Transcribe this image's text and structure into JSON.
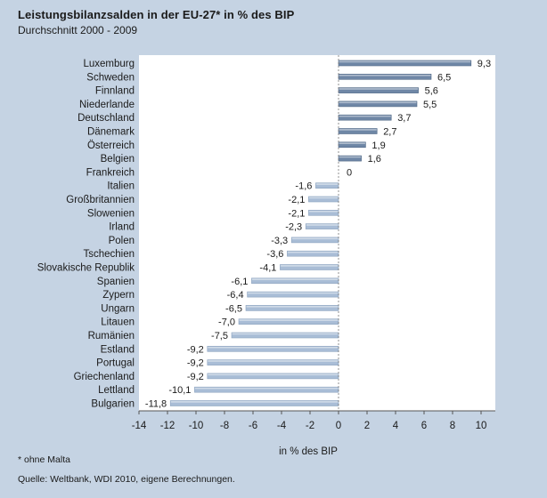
{
  "header": {
    "title": "Leistungsbilanzsalden in der EU-27* in % des BIP",
    "subtitle": "Durchschnitt 2000 - 2009"
  },
  "footer": {
    "footnote": "* ohne Malta",
    "source": "Quelle: Weltbank, WDI 2010, eigene Berechnungen."
  },
  "colors": {
    "background": "#c5d3e3",
    "plot_background": "#ffffff",
    "positive_bar": "#6f87a6",
    "negative_bar": "#a9bdd6",
    "axis": "#555555"
  },
  "chart_data": {
    "type": "bar",
    "orientation": "horizontal",
    "categories": [
      "Luxemburg",
      "Schweden",
      "Finnland",
      "Niederlande",
      "Deutschland",
      "Dänemark",
      "Österreich",
      "Belgien",
      "Frankreich",
      "Italien",
      "Großbritannien",
      "Slowenien",
      "Irland",
      "Polen",
      "Tschechien",
      "Slovakische Republik",
      "Spanien",
      "Zypern",
      "Ungarn",
      "Litauen",
      "Rumänien",
      "Estland",
      "Portugal",
      "Griechenland",
      "Lettland",
      "Bulgarien"
    ],
    "values": [
      9.3,
      6.5,
      5.6,
      5.5,
      3.7,
      2.7,
      1.9,
      1.6,
      0,
      -1.6,
      -2.1,
      -2.1,
      -2.3,
      -3.3,
      -3.6,
      -4.1,
      -6.1,
      -6.4,
      -6.5,
      -7.0,
      -7.5,
      -9.2,
      -9.2,
      -9.2,
      -10.1,
      -11.8
    ],
    "value_labels": [
      "9,3",
      "6,5",
      "5,6",
      "5,5",
      "3,7",
      "2,7",
      "1,9",
      "1,6",
      "0",
      "-1,6",
      "-2,1",
      "-2,1",
      "-2,3",
      "-3,3",
      "-3,6",
      "-4,1",
      "-6,1",
      "-6,4",
      "-6,5",
      "-7,0",
      "-7,5",
      "-9,2",
      "-9,2",
      "-9,2",
      "-10,1",
      "-11,8"
    ],
    "xlabel": "in % des BIP",
    "ylabel": "",
    "xlim": [
      -14,
      11
    ],
    "xticks": [
      -14,
      -12,
      -10,
      -8,
      -6,
      -4,
      -2,
      0,
      2,
      4,
      6,
      8,
      10
    ],
    "xtick_labels": [
      "-14",
      "-12",
      "-10",
      "-8",
      "-6",
      "-4",
      "-2",
      "0",
      "2",
      "4",
      "6",
      "8",
      "10"
    ],
    "grid": false,
    "legend": "none"
  }
}
